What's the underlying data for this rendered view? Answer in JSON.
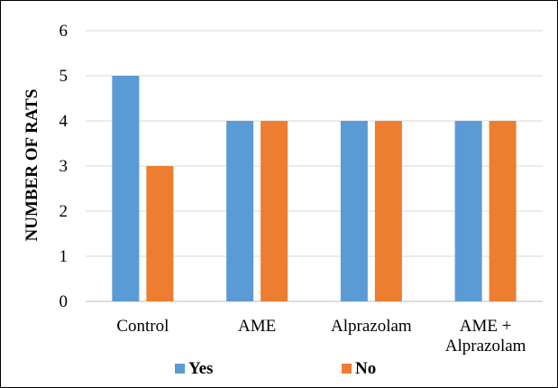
{
  "chart_data": {
    "type": "bar",
    "title": "",
    "xlabel": "",
    "ylabel": "NUMBER OF RATS",
    "ylim": [
      0,
      6
    ],
    "yticks": [
      0,
      1,
      2,
      3,
      4,
      5,
      6
    ],
    "grid": true,
    "legend_position": "bottom",
    "categories": [
      [
        "Control"
      ],
      [
        "AME"
      ],
      [
        "Alprazolam"
      ],
      [
        "AME +",
        "Alprazolam"
      ]
    ],
    "series": [
      {
        "name": "Yes",
        "color": "#5B9BD5",
        "values": [
          5,
          4,
          4,
          4
        ]
      },
      {
        "name": "No",
        "color": "#ED7D31",
        "values": [
          3,
          4,
          4,
          4
        ]
      }
    ]
  }
}
